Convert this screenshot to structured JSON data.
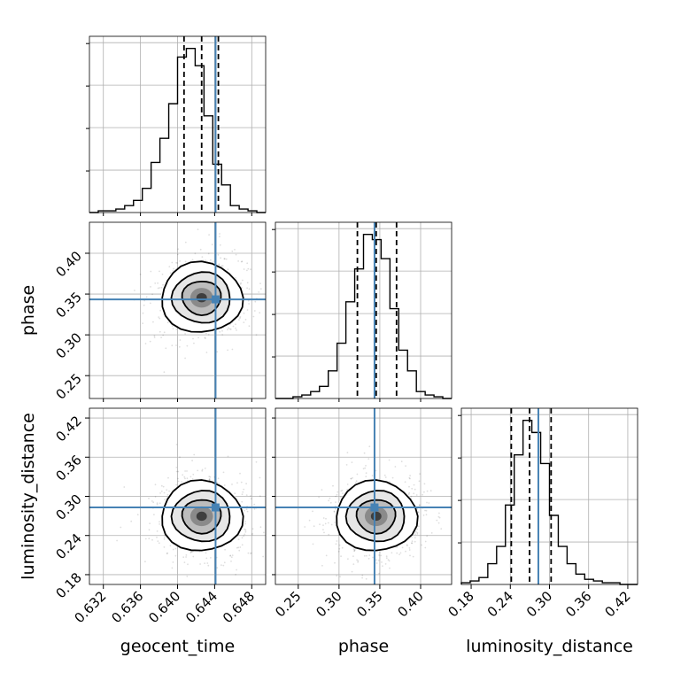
{
  "chart_data": {
    "type": "corner",
    "parameters": [
      {
        "name": "geocent_time",
        "range": [
          0.6305,
          0.6495
        ],
        "ticks": [
          "0.632",
          "0.636",
          "0.640",
          "0.644",
          "0.648"
        ],
        "tick_values": [
          0.632,
          0.636,
          0.64,
          0.644,
          0.648
        ],
        "truth": 0.6441,
        "quantiles": [
          0.6407,
          0.6426,
          0.6444
        ],
        "hist_edges": [
          0.6305,
          0.6495
        ],
        "hist_counts": [
          0,
          0.01,
          0.01,
          0.02,
          0.04,
          0.07,
          0.14,
          0.29,
          0.43,
          0.63,
          0.9,
          0.95,
          0.85,
          0.56,
          0.28,
          0.16,
          0.04,
          0.02,
          0.01,
          0
        ]
      },
      {
        "name": "phase",
        "range": [
          0.222,
          0.438
        ],
        "ticks": [
          "0.25",
          "0.30",
          "0.35",
          "0.40"
        ],
        "tick_values": [
          0.25,
          0.3,
          0.35,
          0.4
        ],
        "truth": 0.3435,
        "quantiles": [
          0.3225,
          0.3455,
          0.3705
        ],
        "hist_edges": [
          0.222,
          0.438
        ],
        "hist_counts": [
          0,
          0,
          0.01,
          0.02,
          0.04,
          0.07,
          0.16,
          0.32,
          0.56,
          0.75,
          0.95,
          0.92,
          0.81,
          0.52,
          0.28,
          0.16,
          0.04,
          0.02,
          0.01,
          0
        ]
      },
      {
        "name": "luminosity_distance",
        "range": [
          0.165,
          0.435
        ],
        "ticks": [
          "0.18",
          "0.24",
          "0.30",
          "0.36",
          "0.42"
        ],
        "tick_values": [
          0.18,
          0.24,
          0.3,
          0.36,
          0.42
        ],
        "truth": 0.283,
        "quantiles": [
          0.2415,
          0.2695,
          0.3025
        ],
        "hist_edges": [
          0.165,
          0.435
        ],
        "hist_counts": [
          0.01,
          0.02,
          0.04,
          0.12,
          0.22,
          0.46,
          0.75,
          0.95,
          0.88,
          0.7,
          0.4,
          0.22,
          0.12,
          0.06,
          0.03,
          0.02,
          0.01,
          0.01,
          0,
          0
        ]
      }
    ],
    "truth_color": "#4682b4",
    "grid": true,
    "scatter_points": [
      {
        "x": 0.6378,
        "y": 0.328
      },
      {
        "x": 0.6411,
        "y": 0.359
      },
      {
        "x": 0.6452,
        "y": 0.3381
      },
      {
        "x": 0.6369,
        "y": 0.3512
      },
      {
        "x": 0.6437,
        "y": 0.3689
      },
      {
        "x": 0.6396,
        "y": 0.3203
      },
      {
        "x": 0.6471,
        "y": 0.3501
      },
      {
        "x": 0.6358,
        "y": 0.3422
      },
      {
        "x": 0.642,
        "y": 0.3115
      },
      {
        "x": 0.6444,
        "y": 0.3257
      },
      {
        "x": 0.6385,
        "y": 0.3731
      },
      {
        "x": 0.6462,
        "y": 0.3622
      },
      {
        "x": 0.6349,
        "y": 0.3611
      },
      {
        "x": 0.6403,
        "y": 0.3044
      },
      {
        "x": 0.6481,
        "y": 0.331
      }
    ]
  }
}
